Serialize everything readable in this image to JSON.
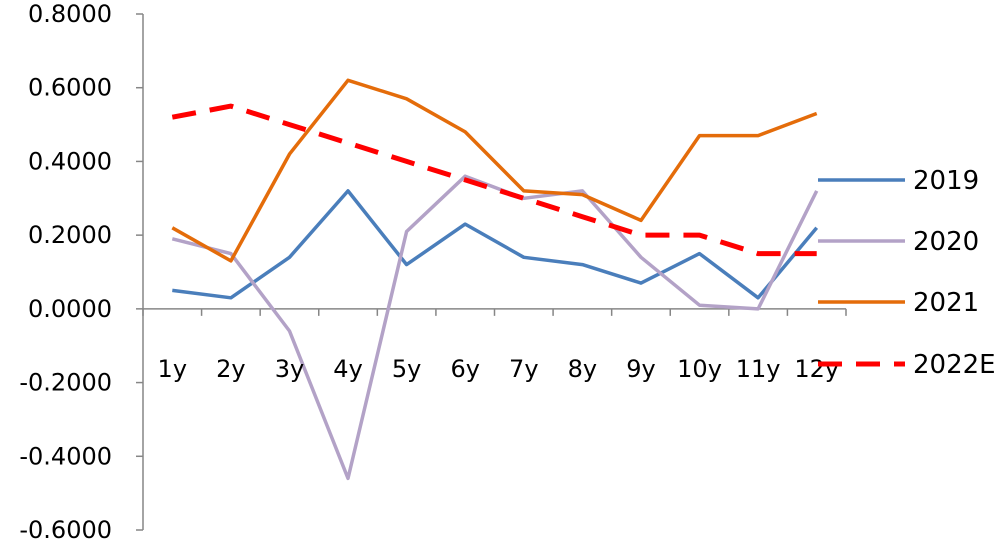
{
  "chart_data": {
    "type": "line",
    "categories": [
      "1y",
      "2y",
      "3y",
      "4y",
      "5y",
      "6y",
      "7y",
      "8y",
      "9y",
      "10y",
      "11y",
      "12y"
    ],
    "ylim": [
      -0.6,
      0.8
    ],
    "ytick_labels": [
      "0.8000",
      "0.6000",
      "0.4000",
      "0.2000",
      "0.0000",
      "-0.2000",
      "-0.4000",
      "-0.6000"
    ],
    "ytick_values": [
      0.8,
      0.6,
      0.4,
      0.2,
      0.0,
      -0.2,
      -0.4,
      -0.6
    ],
    "grid": false,
    "legend_position": "right",
    "series": [
      {
        "name": "2019",
        "color": "#4a7ebb",
        "style": "solid",
        "values": [
          0.05,
          0.03,
          0.14,
          0.32,
          0.12,
          0.23,
          0.14,
          0.12,
          0.07,
          0.15,
          0.03,
          0.22
        ]
      },
      {
        "name": "2020",
        "color": "#b3a2c7",
        "style": "solid",
        "values": [
          0.19,
          0.15,
          -0.06,
          -0.46,
          0.21,
          0.36,
          0.3,
          0.32,
          0.14,
          0.01,
          0.0,
          0.32
        ]
      },
      {
        "name": "2021",
        "color": "#e46c0a",
        "style": "solid",
        "values": [
          0.22,
          0.13,
          0.42,
          0.62,
          0.57,
          0.48,
          0.32,
          0.31,
          0.24,
          0.47,
          0.47,
          0.53
        ]
      },
      {
        "name": "2022E",
        "color": "#ff0000",
        "style": "dashed",
        "values": [
          0.52,
          0.55,
          0.5,
          0.45,
          0.4,
          0.35,
          0.3,
          0.25,
          0.2,
          0.2,
          0.15,
          0.15
        ]
      }
    ]
  }
}
